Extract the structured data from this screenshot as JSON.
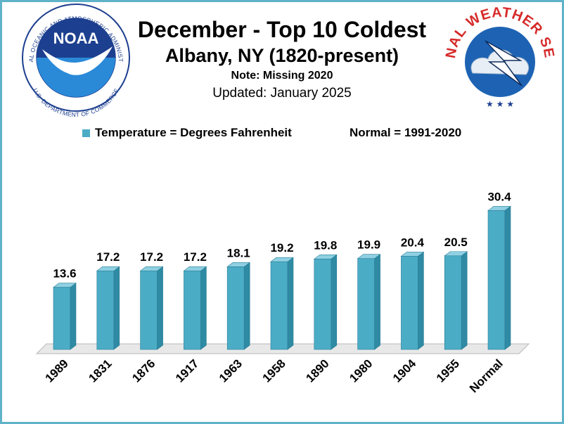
{
  "header": {
    "title": "December - Top  10 Coldest",
    "subtitle": "Albany, NY (1820-present)",
    "note": "Note: Missing 2020",
    "updated": "Updated: January 2025"
  },
  "legend": {
    "series_label": "Temperature = Degrees Fahrenheit",
    "normal_label": "Normal = 1991-2020"
  },
  "logos": {
    "noaa": {
      "name": "NOAA",
      "ring_text": "NATIONAL OCEANIC AND ATMOSPHERIC ADMINISTRATION",
      "bottom_text": "U.S. DEPARTMENT OF COMMERCE"
    },
    "nws": {
      "ring_text": "NATIONAL WEATHER SERVICE"
    }
  },
  "colors": {
    "bar": "#4bacc6",
    "bar_side": "#2f8aa3",
    "bar_top": "#8fd0e2",
    "frame": "#5fb3c9",
    "floor": "#e8e8e8"
  },
  "chart_data": {
    "type": "bar",
    "title": "December - Top  10 Coldest",
    "categories": [
      "1989",
      "1831",
      "1876",
      "1917",
      "1963",
      "1958",
      "1890",
      "1980",
      "1904",
      "1955",
      "Normal"
    ],
    "values": [
      13.6,
      17.2,
      17.2,
      17.2,
      18.1,
      19.2,
      19.8,
      19.9,
      20.4,
      20.5,
      30.4
    ],
    "series": [
      {
        "name": "Temperature = Degrees Fahrenheit",
        "values": [
          13.6,
          17.2,
          17.2,
          17.2,
          18.1,
          19.2,
          19.8,
          19.9,
          20.4,
          20.5,
          30.4
        ]
      }
    ],
    "value_labels": [
      "13.6",
      "17.2",
      "17.2",
      "17.2",
      "18.1",
      "19.2",
      "19.8",
      "19.9",
      "20.4",
      "20.5",
      "30.4"
    ],
    "ylim": [
      0,
      32
    ],
    "grid": false,
    "legend_position": "top",
    "style": "3d-column"
  }
}
